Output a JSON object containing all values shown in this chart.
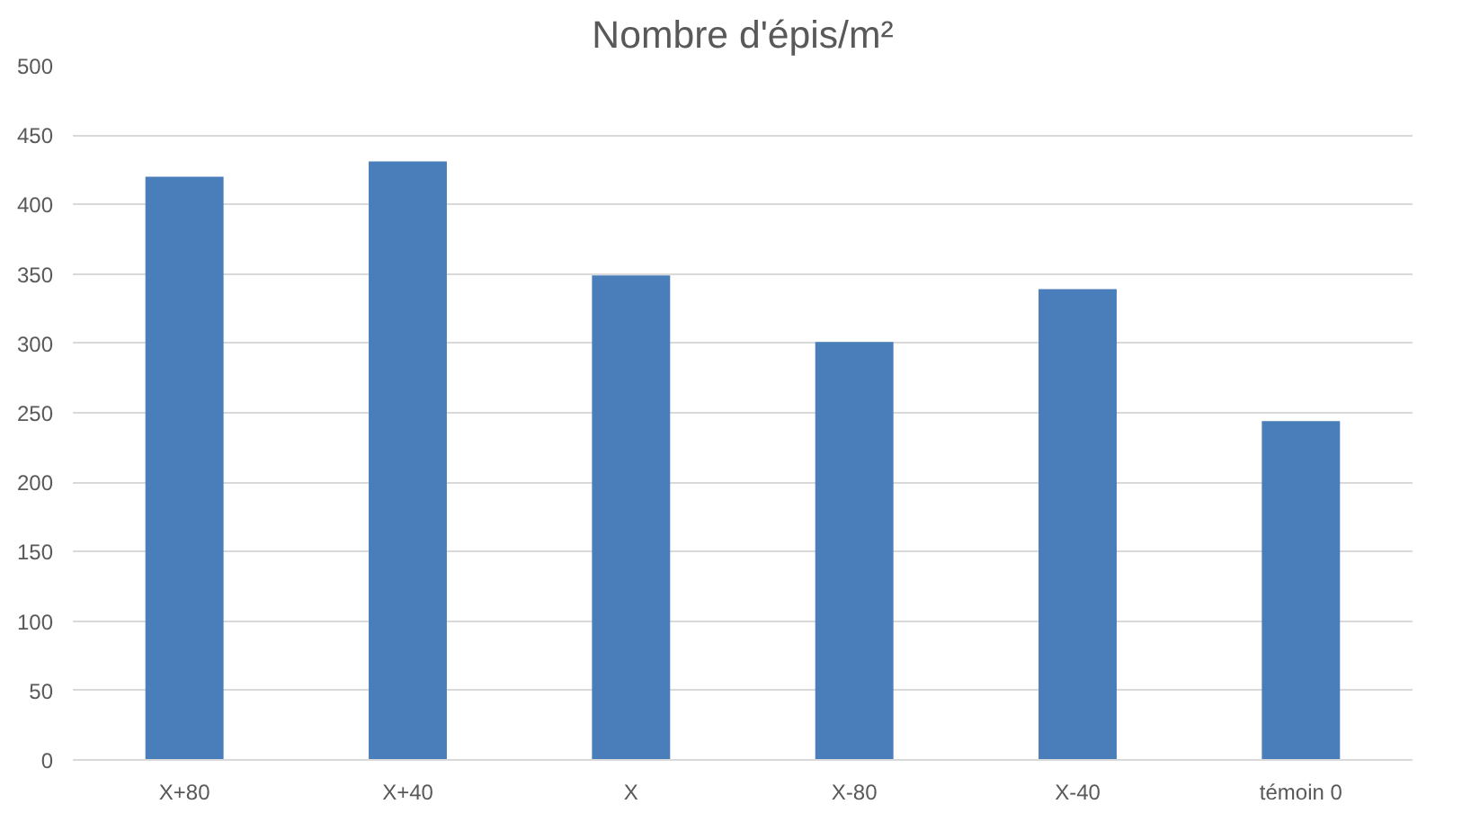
{
  "chart_data": {
    "type": "bar",
    "title": "Nombre d'épis/m²",
    "categories": [
      "X+80",
      "X+40",
      "X",
      "X-80",
      "X-40",
      "témoin 0"
    ],
    "values": [
      420,
      431,
      349,
      301,
      339,
      244
    ],
    "color": "#4a7ebb",
    "ylim": [
      0,
      500
    ],
    "yticks": [
      0,
      50,
      100,
      150,
      200,
      250,
      300,
      350,
      400,
      450,
      500
    ],
    "grid": "y"
  }
}
